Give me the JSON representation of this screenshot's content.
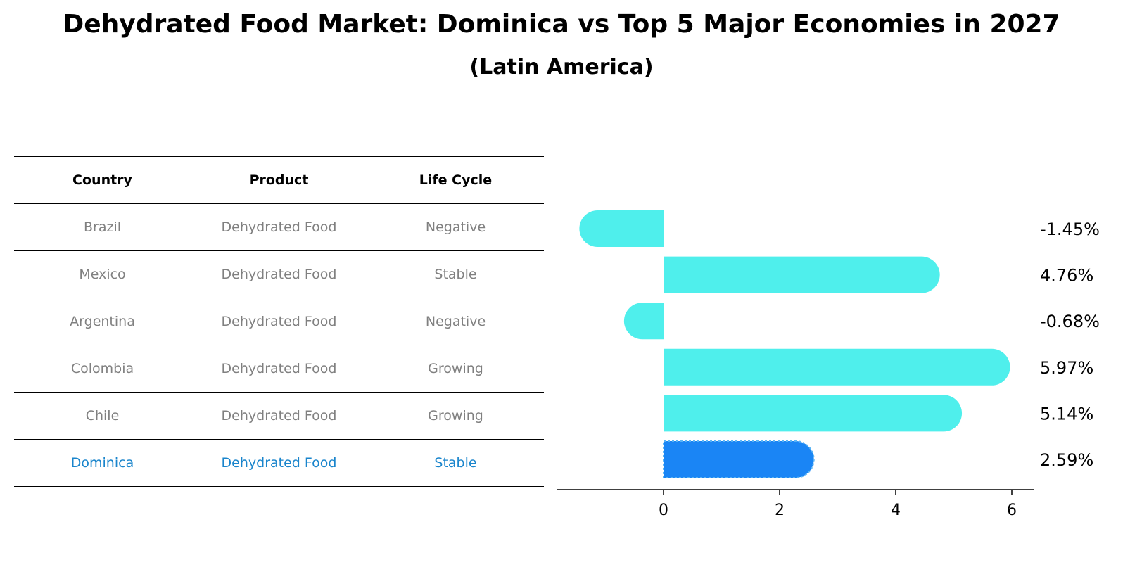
{
  "header": {
    "title": "Dehydrated Food Market: Dominica vs Top 5 Major Economies in 2027",
    "subtitle": "(Latin America)"
  },
  "table": {
    "columns": [
      "Country",
      "Product",
      "Life Cycle"
    ],
    "rows": [
      [
        "Brazil",
        "Dehydrated Food",
        "Negative"
      ],
      [
        "Mexico",
        "Dehydrated Food",
        "Stable"
      ],
      [
        "Argentina",
        "Dehydrated Food",
        "Negative"
      ],
      [
        "Colombia",
        "Dehydrated Food",
        "Growing"
      ],
      [
        "Chile",
        "Dehydrated Food",
        "Growing"
      ],
      [
        "Dominica",
        "Dehydrated Food",
        "Stable"
      ]
    ],
    "highlight_row": "Dominica"
  },
  "chart_data": {
    "type": "bar",
    "orientation": "horizontal",
    "categories": [
      "Brazil",
      "Mexico",
      "Argentina",
      "Colombia",
      "Chile",
      "Dominica"
    ],
    "values": [
      -1.45,
      4.76,
      -0.68,
      5.97,
      5.14,
      2.59
    ],
    "value_labels": [
      "-1.45%",
      "4.76%",
      "-0.68%",
      "5.97%",
      "5.14%",
      "2.59%"
    ],
    "xticks": [
      "0",
      "2",
      "4",
      "6"
    ],
    "xlim": [
      -1.83,
      6.36
    ],
    "title": "Dehydrated Food Market: Dominica vs Top 5 Major Economies in 2027",
    "subtitle": "(Latin America)",
    "xlabel": "",
    "ylabel": "",
    "highlight": "Dominica",
    "colors": {
      "bar": "#4fefec",
      "highlight": "#1a85f5",
      "highlight_border": "#5ab4f5"
    }
  }
}
